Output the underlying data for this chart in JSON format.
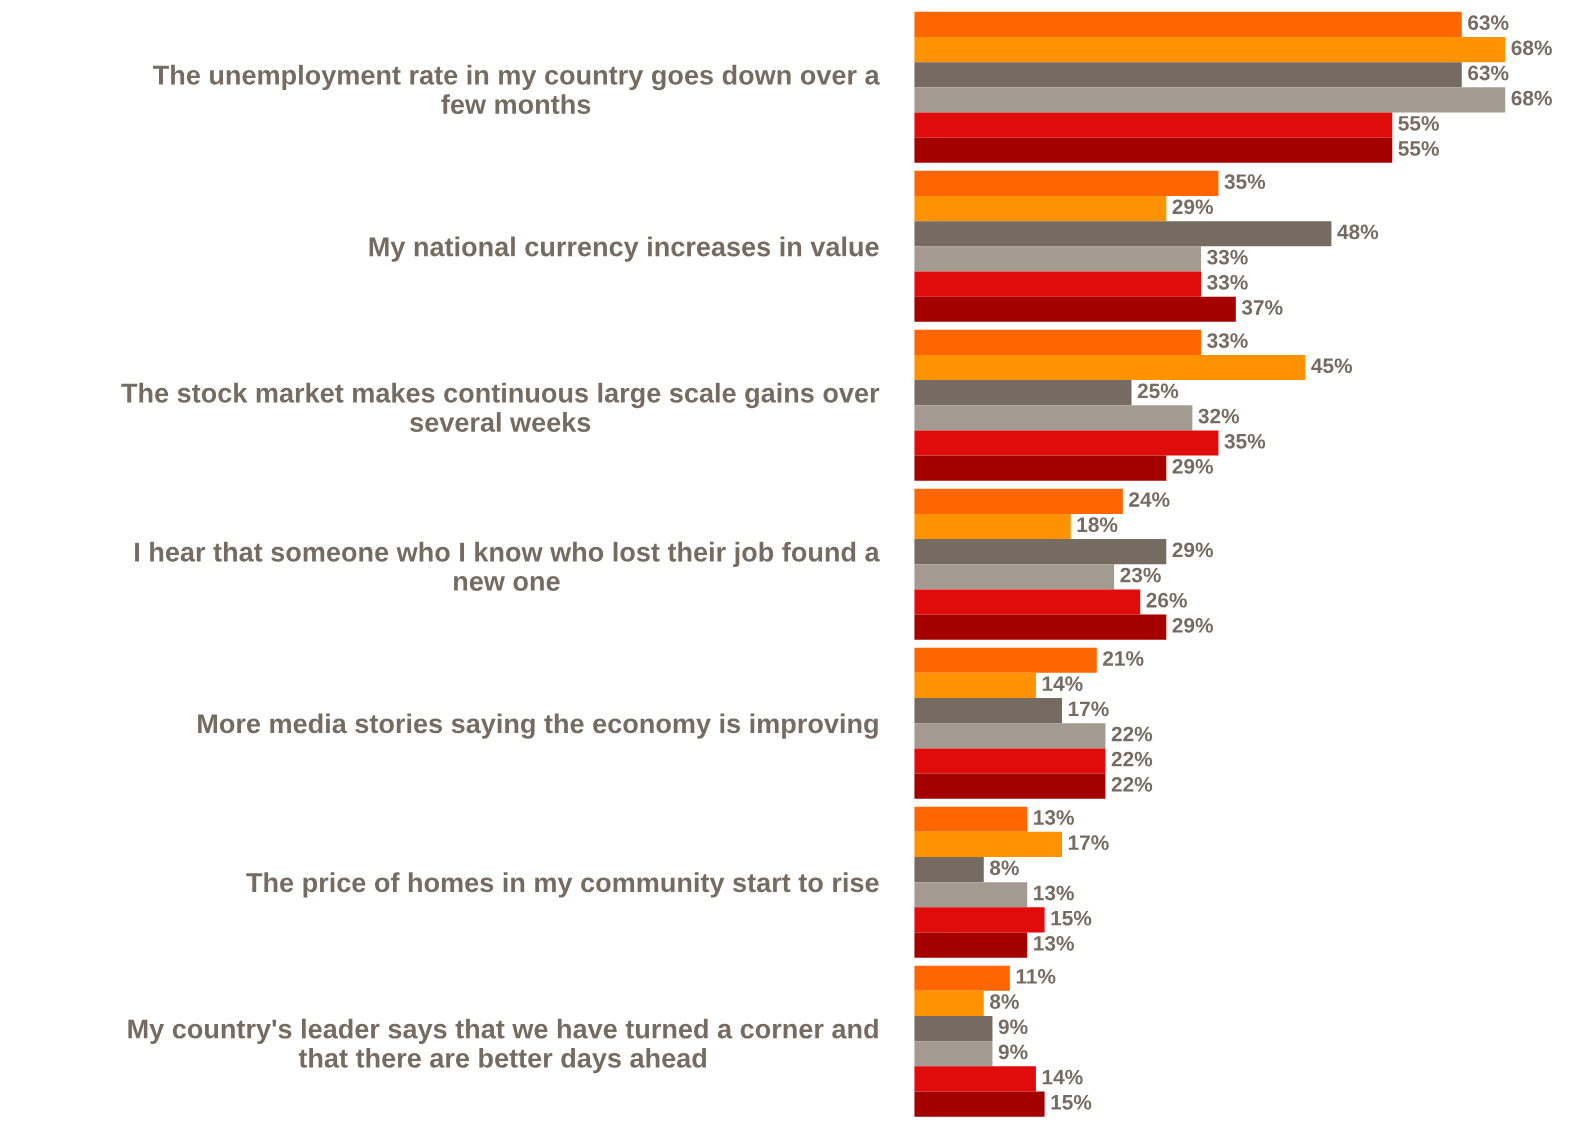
{
  "chart_data": {
    "type": "bar",
    "orientation": "horizontal",
    "data_labels": true,
    "categories": [
      "The unemployment rate in my country goes down over a\nfew months",
      "My national currency increases in value",
      "The stock market makes continuous large scale gains over\nseveral weeks",
      "I hear that someone who I know who lost their job found a\nnew one",
      "More media stories saying the economy is improving",
      "The price of homes in my community start to rise",
      "My country's leader says that we have turned a corner and\nthat there are better days ahead"
    ],
    "series": [
      {
        "color": "#ff6600",
        "values": [
          63,
          35,
          33,
          24,
          21,
          13,
          11
        ],
        "value_labels": [
          "63%",
          "35%",
          "33%",
          "24%",
          "21%",
          "13%",
          "11%"
        ]
      },
      {
        "color": "#ff9200",
        "values": [
          68,
          29,
          45,
          18,
          14,
          17,
          8
        ],
        "value_labels": [
          "68%",
          "29%",
          "45%",
          "18%",
          "14%",
          "17%",
          "8%"
        ]
      },
      {
        "color": "#766b60",
        "values": [
          63,
          48,
          25,
          29,
          17,
          8,
          9
        ],
        "value_labels": [
          "63%",
          "48%",
          "25%",
          "29%",
          "17%",
          "8%",
          "9%"
        ]
      },
      {
        "color": "#a39a90",
        "values": [
          68,
          33,
          32,
          23,
          22,
          13,
          9
        ],
        "value_labels": [
          "68%",
          "33%",
          "32%",
          "23%",
          "22%",
          "13%",
          "9%"
        ]
      },
      {
        "color": "#e00b0b",
        "values": [
          55,
          33,
          35,
          26,
          22,
          15,
          14
        ],
        "value_labels": [
          "55%",
          "33%",
          "35%",
          "26%",
          "22%",
          "15%",
          "14%"
        ]
      },
      {
        "color": "#a50000",
        "values": [
          55,
          37,
          29,
          29,
          22,
          13,
          15
        ],
        "value_labels": [
          "55%",
          "37%",
          "29%",
          "29%",
          "22%",
          "13%",
          "15%"
        ]
      }
    ]
  }
}
